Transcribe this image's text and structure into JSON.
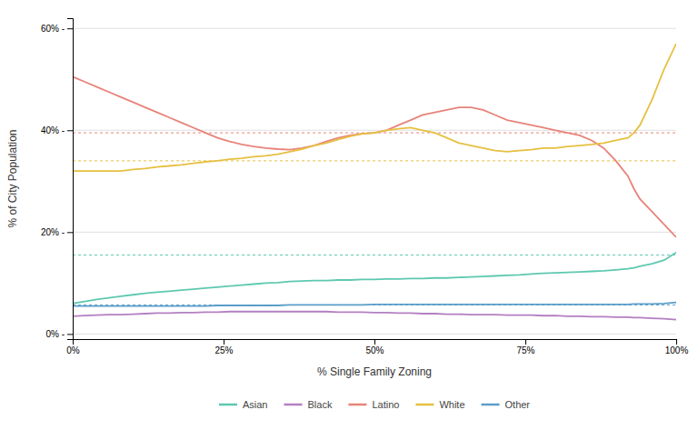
{
  "chart_data": {
    "type": "line",
    "xlabel": "% Single Family Zoning",
    "ylabel": "% of City Population",
    "xlim": [
      0,
      100
    ],
    "ylim": [
      -1,
      62
    ],
    "xticks": [
      {
        "value": 0,
        "label": "0%"
      },
      {
        "value": 25,
        "label": "25%"
      },
      {
        "value": 50,
        "label": "50%"
      },
      {
        "value": 75,
        "label": "75%"
      },
      {
        "value": 100,
        "label": "100%"
      }
    ],
    "yticks": [
      {
        "value": 0,
        "label": "0% -"
      },
      {
        "value": 20,
        "label": "20% -"
      },
      {
        "value": 40,
        "label": "40% -"
      },
      {
        "value": 60,
        "label": "60% -"
      }
    ],
    "grid": true,
    "legend": "bottom",
    "x": [
      0,
      2,
      4,
      6,
      8,
      10,
      12,
      14,
      16,
      18,
      20,
      22,
      24,
      26,
      28,
      30,
      32,
      34,
      36,
      38,
      40,
      42,
      44,
      46,
      48,
      50,
      52,
      54,
      56,
      58,
      60,
      62,
      64,
      66,
      68,
      70,
      72,
      74,
      76,
      78,
      80,
      82,
      84,
      86,
      88,
      90,
      92,
      93,
      94,
      96,
      98,
      100
    ],
    "series": [
      {
        "name": "Asian",
        "color": "#5ec8b0",
        "values": [
          6.0,
          6.4,
          6.8,
          7.1,
          7.4,
          7.7,
          8.0,
          8.2,
          8.4,
          8.6,
          8.8,
          9.0,
          9.2,
          9.4,
          9.6,
          9.8,
          10.0,
          10.1,
          10.3,
          10.4,
          10.5,
          10.5,
          10.6,
          10.6,
          10.7,
          10.7,
          10.8,
          10.8,
          10.9,
          10.9,
          11.0,
          11.0,
          11.1,
          11.2,
          11.3,
          11.4,
          11.5,
          11.6,
          11.8,
          11.9,
          12.0,
          12.1,
          12.2,
          12.3,
          12.4,
          12.6,
          12.8,
          13.0,
          13.3,
          13.8,
          14.5,
          16.0
        ]
      },
      {
        "name": "Black",
        "color": "#b47fc2",
        "values": [
          3.5,
          3.6,
          3.7,
          3.8,
          3.8,
          3.9,
          4.0,
          4.1,
          4.1,
          4.2,
          4.2,
          4.3,
          4.3,
          4.4,
          4.4,
          4.4,
          4.4,
          4.4,
          4.4,
          4.4,
          4.4,
          4.4,
          4.3,
          4.3,
          4.3,
          4.2,
          4.2,
          4.1,
          4.1,
          4.0,
          4.0,
          3.9,
          3.9,
          3.8,
          3.8,
          3.8,
          3.7,
          3.7,
          3.7,
          3.6,
          3.6,
          3.5,
          3.5,
          3.4,
          3.4,
          3.3,
          3.3,
          3.2,
          3.2,
          3.1,
          3.0,
          2.8
        ]
      },
      {
        "name": "Latino",
        "color": "#e8837a",
        "values": [
          50.5,
          49.5,
          48.5,
          47.5,
          46.5,
          45.5,
          44.5,
          43.5,
          42.5,
          41.5,
          40.5,
          39.5,
          38.5,
          37.8,
          37.2,
          36.8,
          36.5,
          36.3,
          36.2,
          36.5,
          37.0,
          37.8,
          38.5,
          39.0,
          39.3,
          39.5,
          40.0,
          41.0,
          42.0,
          43.0,
          43.5,
          44.0,
          44.5,
          44.5,
          44.0,
          43.0,
          42.0,
          41.5,
          41.0,
          40.5,
          40.0,
          39.5,
          39.0,
          38.0,
          36.5,
          34.0,
          31.0,
          28.5,
          26.5,
          24.0,
          21.5,
          19.0
        ]
      },
      {
        "name": "White",
        "color": "#e6c040",
        "values": [
          32.0,
          32.0,
          32.0,
          32.0,
          32.0,
          32.3,
          32.5,
          32.8,
          33.0,
          33.2,
          33.5,
          33.8,
          34.0,
          34.3,
          34.5,
          34.8,
          35.0,
          35.3,
          35.8,
          36.3,
          37.0,
          37.5,
          38.2,
          38.8,
          39.3,
          39.5,
          40.0,
          40.3,
          40.5,
          40.0,
          39.5,
          38.5,
          37.5,
          37.0,
          36.5,
          36.0,
          35.8,
          36.0,
          36.2,
          36.5,
          36.5,
          36.8,
          37.0,
          37.2,
          37.5,
          38.0,
          38.5,
          39.5,
          41.0,
          46.0,
          52.0,
          57.0
        ]
      },
      {
        "name": "Other",
        "color": "#5b9ec9",
        "values": [
          5.5,
          5.5,
          5.5,
          5.5,
          5.5,
          5.5,
          5.5,
          5.5,
          5.5,
          5.5,
          5.5,
          5.5,
          5.6,
          5.6,
          5.6,
          5.6,
          5.6,
          5.6,
          5.7,
          5.7,
          5.7,
          5.7,
          5.7,
          5.7,
          5.7,
          5.8,
          5.8,
          5.8,
          5.8,
          5.8,
          5.8,
          5.8,
          5.8,
          5.8,
          5.8,
          5.8,
          5.8,
          5.8,
          5.8,
          5.8,
          5.8,
          5.8,
          5.8,
          5.8,
          5.8,
          5.8,
          5.8,
          5.9,
          5.9,
          5.9,
          6.0,
          6.2
        ]
      }
    ],
    "reference_lines": [
      {
        "y": 39.5,
        "color": "#e8837a",
        "line_style": "dotted"
      },
      {
        "y": 34.0,
        "color": "#e6c040",
        "line_style": "dotted"
      },
      {
        "y": 15.5,
        "color": "#5ec8b0",
        "line_style": "dotted"
      },
      {
        "y": 5.7,
        "color": "#5b9ec9",
        "line_style": "dotted"
      }
    ]
  }
}
